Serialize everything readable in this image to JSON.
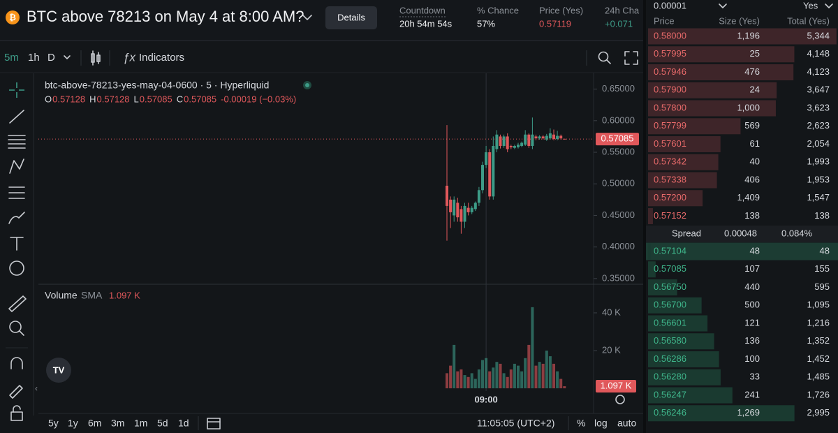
{
  "header": {
    "title": "BTC above 78213 on May 4 at 8:00 AM?",
    "button": "Details",
    "stats": [
      {
        "label": "Countdown",
        "value": "20h 54m 54s"
      },
      {
        "label": "% Chance",
        "value": "57%"
      },
      {
        "label": "Price (Yes)",
        "value": "0.57119"
      },
      {
        "label": "24h Cha",
        "value": "+0.071"
      }
    ]
  },
  "toolbar": {
    "intervals": [
      "5m",
      "1h",
      "D"
    ],
    "indicators": "Indicators"
  },
  "legend": {
    "symbol": "btc-above-78213-yes-may-04-0600 · 5 · Hyperliquid",
    "ohlc": [
      {
        "key": "O",
        "value": "0.57128"
      },
      {
        "key": "H",
        "value": "0.57128"
      },
      {
        "key": "L",
        "value": "0.57085"
      },
      {
        "key": "C",
        "value": "0.57085"
      }
    ],
    "change": "-0.00019 (−0.03%)",
    "volume": "Volume",
    "sma": "SMA",
    "sma_value": "1.097 K"
  },
  "chart_data": {
    "type": "candlestick",
    "categories": [
      null,
      null,
      null,
      null,
      null,
      null,
      null,
      null,
      null,
      null,
      null,
      "09:00",
      null,
      null,
      null,
      null,
      null,
      null,
      null,
      null,
      null,
      null,
      null,
      null,
      null,
      null,
      null,
      null,
      null,
      null,
      null,
      null,
      null,
      null
    ],
    "open": [
      0.497,
      0.475,
      0.45,
      0.47,
      0.46,
      0.44,
      0.462,
      0.455,
      0.46,
      0.47,
      0.49,
      0.53,
      0.55,
      0.48,
      0.555,
      0.575,
      0.56,
      0.575,
      0.56,
      0.557,
      0.558,
      0.56,
      0.562,
      0.578,
      0.56,
      0.575,
      0.572,
      0.575,
      0.57,
      0.572,
      0.578,
      0.571,
      0.576,
      0.57128
    ],
    "high": [
      0.593,
      0.48,
      0.48,
      0.478,
      0.465,
      0.47,
      0.47,
      0.465,
      0.472,
      0.495,
      0.535,
      0.56,
      0.555,
      0.575,
      0.585,
      0.578,
      0.578,
      0.58,
      0.562,
      0.562,
      0.565,
      0.567,
      0.585,
      0.58,
      0.605,
      0.578,
      0.577,
      0.577,
      0.579,
      0.588,
      0.586,
      0.584,
      0.578,
      0.57128
    ],
    "low": [
      0.41,
      0.43,
      0.44,
      0.44,
      0.421,
      0.43,
      0.45,
      0.452,
      0.457,
      0.465,
      0.485,
      0.525,
      0.475,
      0.475,
      0.55,
      0.556,
      0.557,
      0.55,
      0.555,
      0.555,
      0.556,
      0.558,
      0.56,
      0.557,
      0.555,
      0.569,
      0.57,
      0.57,
      0.568,
      0.57,
      0.569,
      0.569,
      0.57,
      0.57085
    ],
    "close": [
      0.465,
      0.455,
      0.475,
      0.447,
      0.44,
      0.465,
      0.455,
      0.462,
      0.47,
      0.49,
      0.53,
      0.55,
      0.48,
      0.56,
      0.578,
      0.56,
      0.575,
      0.555,
      0.558,
      0.56,
      0.562,
      0.565,
      0.578,
      0.56,
      0.578,
      0.572,
      0.575,
      0.572,
      0.576,
      0.58,
      0.571,
      0.576,
      0.572,
      0.57085
    ],
    "up_color": "#3d9b87",
    "down_color": "#e0585b",
    "ylim": [
      0.341,
      0.675
    ],
    "yticks": [
      {
        "value": 0.35,
        "label": "0.35000"
      },
      {
        "value": 0.4,
        "label": "0.40000"
      },
      {
        "value": 0.45,
        "label": "0.45000"
      },
      {
        "value": 0.5,
        "label": "0.50000"
      },
      {
        "value": 0.55,
        "label": "0.55000"
      },
      {
        "value": 0.6,
        "label": "0.60000"
      },
      {
        "value": 0.65,
        "label": "0.65000"
      }
    ],
    "volume": {
      "values": [
        8000,
        12000,
        23000,
        9000,
        10000,
        7000,
        6000,
        8000,
        5000,
        10000,
        15000,
        16000,
        9000,
        11000,
        14000,
        13000,
        8000,
        6000,
        10000,
        13000,
        12000,
        9000,
        16000,
        23000,
        43000,
        12000,
        14000,
        13000,
        20000,
        17000,
        13000,
        9000,
        5000,
        1097
      ],
      "ylim": [
        0,
        54800
      ],
      "yticks": [
        {
          "value": 20000,
          "label": "20 K"
        },
        {
          "value": 40000,
          "label": "40 K"
        }
      ]
    }
  },
  "bottom_bar": {
    "ranges": [
      "5y",
      "1y",
      "6m",
      "3m",
      "1m",
      "5d",
      "1d"
    ],
    "clock": "11:05:05 (UTC+2)",
    "options": [
      "%",
      "log",
      "auto"
    ]
  },
  "order_book": {
    "tick": "0.00001",
    "outcome": "Yes",
    "columns": [
      "Price",
      "Size (Yes)",
      "Total (Yes)"
    ],
    "asks": [
      {
        "price": "0.58000",
        "size": "1,196",
        "total": "5,344"
      },
      {
        "price": "0.57995",
        "size": "25",
        "total": "4,148"
      },
      {
        "price": "0.57946",
        "size": "476",
        "total": "4,123"
      },
      {
        "price": "0.57900",
        "size": "24",
        "total": "3,647"
      },
      {
        "price": "0.57800",
        "size": "1,000",
        "total": "3,623"
      },
      {
        "price": "0.57799",
        "size": "569",
        "total": "2,623"
      },
      {
        "price": "0.57601",
        "size": "61",
        "total": "2,054"
      },
      {
        "price": "0.57342",
        "size": "40",
        "total": "1,993"
      },
      {
        "price": "0.57338",
        "size": "406",
        "total": "1,953"
      },
      {
        "price": "0.57200",
        "size": "1,409",
        "total": "1,547"
      },
      {
        "price": "0.57152",
        "size": "138",
        "total": "138"
      }
    ],
    "spread": {
      "label": "Spread",
      "value": "0.00048",
      "percent": "0.084%"
    },
    "bids": [
      {
        "price": "0.57104",
        "size": "48",
        "total": "48"
      },
      {
        "price": "0.57085",
        "size": "107",
        "total": "155"
      },
      {
        "price": "0.56750",
        "size": "440",
        "total": "595"
      },
      {
        "price": "0.56700",
        "size": "500",
        "total": "1,095"
      },
      {
        "price": "0.56601",
        "size": "121",
        "total": "1,216"
      },
      {
        "price": "0.56580",
        "size": "136",
        "total": "1,352"
      },
      {
        "price": "0.56286",
        "size": "100",
        "total": "1,452"
      },
      {
        "price": "0.56280",
        "size": "33",
        "total": "1,485"
      },
      {
        "price": "0.56247",
        "size": "241",
        "total": "1,726"
      },
      {
        "price": "0.56246",
        "size": "1,269",
        "total": "2,995"
      }
    ]
  }
}
